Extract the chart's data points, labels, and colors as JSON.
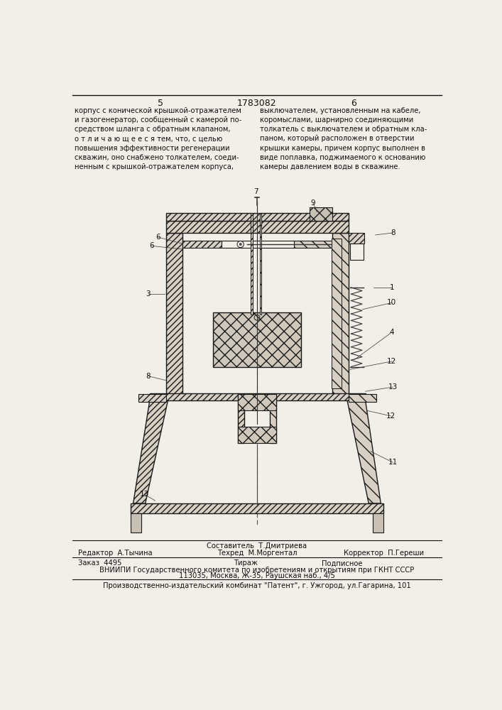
{
  "page_numbers": [
    "5",
    "6"
  ],
  "patent_number": "1783082",
  "left_text": "корпус с конической крышкой-отражателем\nи газогенератор, сообщенный с камерой по-\nсредством шланга с обратным клапаном,\nо т л и ч а ю щ е е с я тем, что, с целью\nповышения эффективности регенерации\nскважин, оно снабжено толкателем, соеди-\nненным с крышкой-отражателем корпуса,",
  "right_text": "выключателем, установленным на кабеле,\nкоромыслами, шарнирно соединяющими\nтолкатель с выключателем и обратным кла-\nпаном, который расположен в отверстии\nкрышки камеры, причем корпус выполнен в\nвиде поплавка, поджимаемого к основанию\nкамеры давлением воды в скважине.",
  "editor_line": "Редактор  А.Тычина",
  "compiler_line1": "Составитель  Т.Дмитриева",
  "compiler_line2": "Техред  М.Моргентал",
  "corrector_line": "Корректор  П.Гереши",
  "order_line": "Заказ  4495",
  "tirazh_line": "Тираж",
  "podpisnoe_line": "Подписное",
  "vniip_line": "ВНИИПИ Государственного комитета по изобретениям и открытиям при ГКНТ СССР",
  "address_line": "113035, Москва, Ж-35, Раушская наб., 4/5",
  "kombnat_line": "Производственно-издательский комбинат \"Патент\", г. Ужгород, ул.Гагарина, 101",
  "bg_color": "#f2efe9",
  "text_color": "#111111",
  "line_color": "#111111",
  "hatch_color": "#333333",
  "draw_bg": "#f2efe9"
}
